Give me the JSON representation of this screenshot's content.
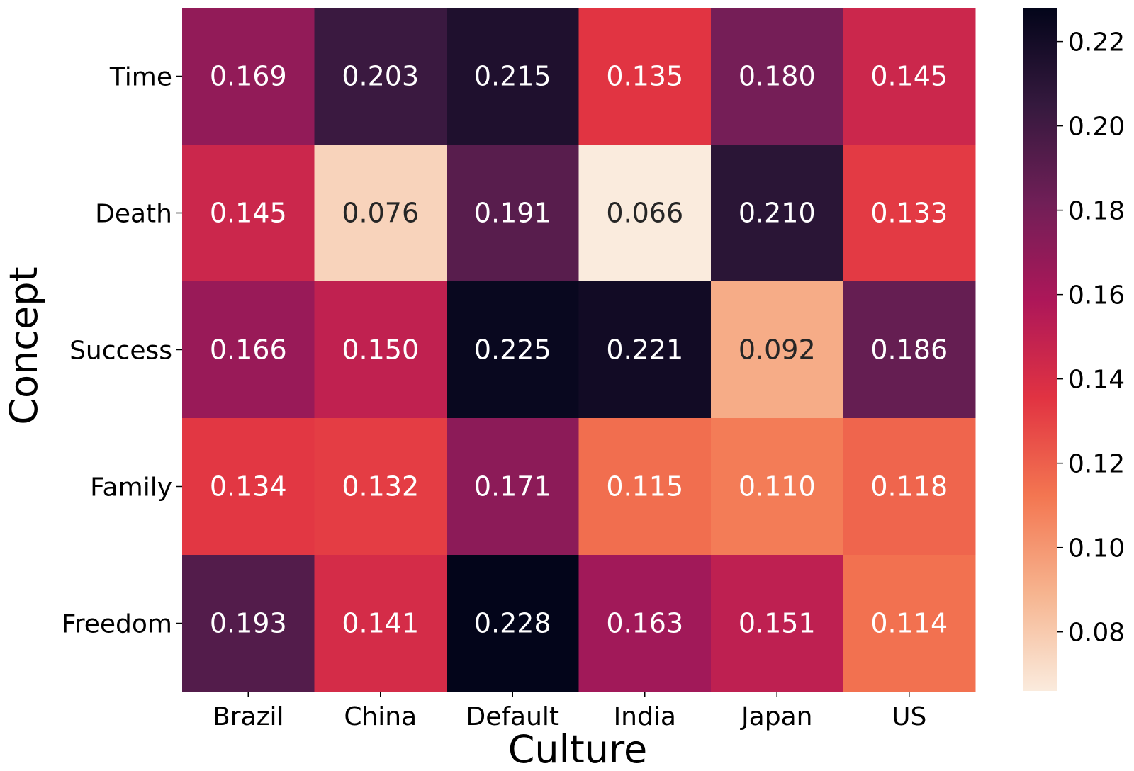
{
  "chart_data": {
    "type": "heatmap",
    "xlabel": "Culture",
    "ylabel": "Concept",
    "x_categories": [
      "Brazil",
      "China",
      "Default",
      "India",
      "Japan",
      "US"
    ],
    "y_categories": [
      "Time",
      "Death",
      "Success",
      "Family",
      "Freedom"
    ],
    "values": [
      [
        0.169,
        0.203,
        0.215,
        0.135,
        0.18,
        0.145
      ],
      [
        0.145,
        0.076,
        0.191,
        0.066,
        0.21,
        0.133
      ],
      [
        0.166,
        0.15,
        0.225,
        0.221,
        0.092,
        0.186
      ],
      [
        0.134,
        0.132,
        0.171,
        0.115,
        0.11,
        0.118
      ],
      [
        0.193,
        0.141,
        0.228,
        0.163,
        0.151,
        0.114
      ]
    ],
    "value_format": "0.000",
    "colorbar": {
      "range": [
        0.066,
        0.228
      ],
      "ticks": [
        0.08,
        0.1,
        0.12,
        0.14,
        0.16,
        0.18,
        0.2,
        0.22
      ],
      "tick_labels": [
        "0.08",
        "0.10",
        "0.12",
        "0.14",
        "0.16",
        "0.18",
        "0.20",
        "0.22"
      ],
      "colormap": "rocket_r",
      "colors": [
        "#faebdd",
        "#f6b48f",
        "#f37651",
        "#e13342",
        "#ad1759",
        "#701f57",
        "#35193e",
        "#03051a"
      ]
    },
    "grid": false,
    "colorbar_position": "right"
  }
}
